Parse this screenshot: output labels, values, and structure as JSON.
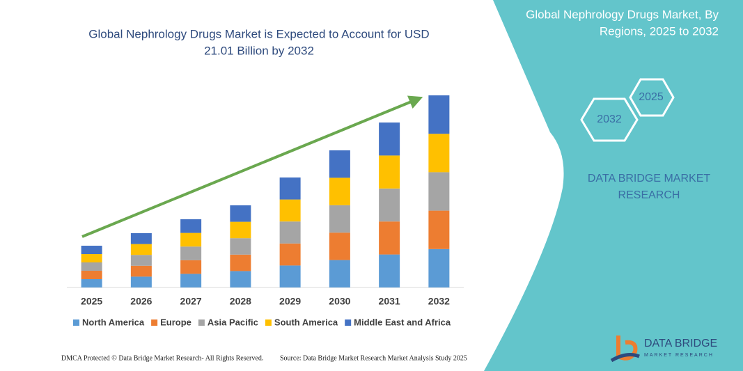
{
  "chart_data": {
    "type": "stacked_bar",
    "title": [
      "Global Nephrology Drugs Market is Expected to Account for USD",
      "21.01 Billion by 2032"
    ],
    "categories": [
      "2025",
      "2026",
      "2027",
      "2028",
      "2029",
      "2030",
      "2031",
      "2032"
    ],
    "series": [
      {
        "name": "North America",
        "color": "#5b9bd5",
        "values": [
          12,
          15.6,
          19.6,
          23.6,
          31.6,
          39.4,
          47.4,
          55.2
        ]
      },
      {
        "name": "Europe",
        "color": "#ed7d31",
        "values": [
          12,
          15.6,
          19.6,
          23.6,
          31.6,
          39.4,
          47.4,
          55.2
        ]
      },
      {
        "name": "Asia Pacific",
        "color": "#a5a5a5",
        "values": [
          12,
          15.6,
          19.6,
          23.6,
          31.6,
          39.4,
          47.4,
          55.2
        ]
      },
      {
        "name": "South America",
        "color": "#ffc000",
        "values": [
          12,
          15.6,
          19.6,
          23.6,
          31.6,
          39.4,
          47.4,
          55.2
        ]
      },
      {
        "name": "Middle East and Africa",
        "color": "#4472c4",
        "values": [
          12,
          15.6,
          19.6,
          23.6,
          31.6,
          39.4,
          47.4,
          55.2
        ]
      }
    ]
  },
  "panel": {
    "title": [
      "Global Nephrology Drugs Market, By",
      "Regions, 2025 to 2032"
    ],
    "hex_top": "2025",
    "hex_bottom": "2032",
    "brand": [
      "DATA BRIDGE MARKET",
      "RESEARCH"
    ]
  },
  "logo": {
    "name": "DATA BRIDGE",
    "tagline": "MARKET RESEARCH"
  },
  "footer": {
    "left": "DMCA Protected © Data Bridge Market Research- All Rights Reserved.",
    "right": "Source: Data Bridge Market Research Market Analysis Study 2025"
  }
}
